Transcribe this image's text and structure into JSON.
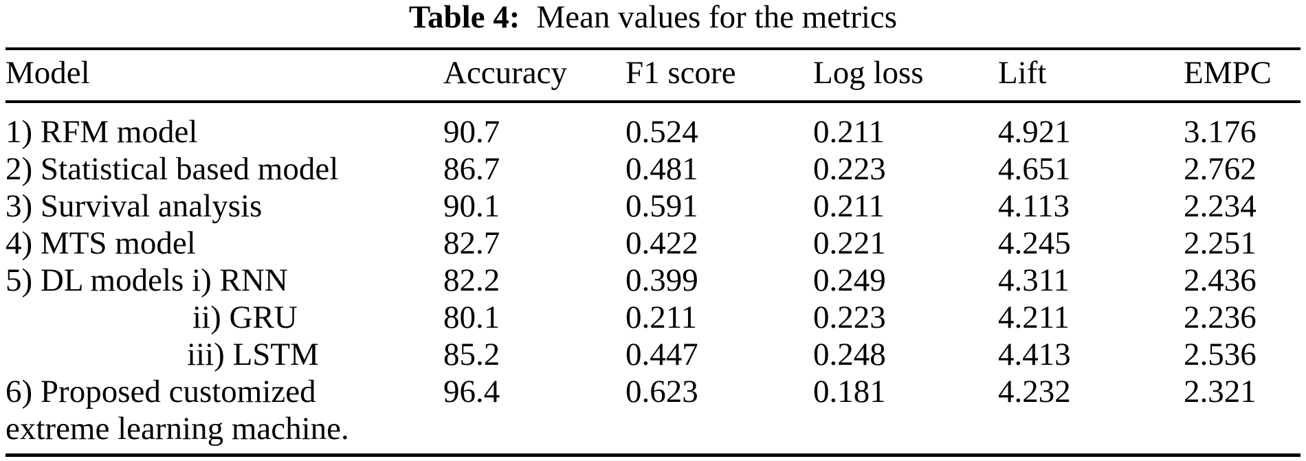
{
  "caption": {
    "label": "Table 4:",
    "title": "Mean values for the metrics"
  },
  "table": {
    "columns": [
      "Model",
      "Accuracy",
      "F1 score",
      "Log loss",
      "Lift",
      "EMPC"
    ],
    "rows": [
      {
        "model": "1) RFM model",
        "accuracy": "90.7",
        "f1_score": "0.524",
        "log_loss": "0.211",
        "lift": "4.921",
        "empc": "3.176"
      },
      {
        "model": "2) Statistical based model",
        "accuracy": "86.7",
        "f1_score": "0.481",
        "log_loss": "0.223",
        "lift": "4.651",
        "empc": "2.762"
      },
      {
        "model": "3) Survival analysis",
        "accuracy": "90.1",
        "f1_score": "0.591",
        "log_loss": "0.211",
        "lift": "4.113",
        "empc": "2.234"
      },
      {
        "model": "4) MTS model",
        "accuracy": "82.7",
        "f1_score": "0.422",
        "log_loss": "0.221",
        "lift": "4.245",
        "empc": "2.251"
      },
      {
        "model": "5) DL models i) RNN",
        "accuracy": "82.2",
        "f1_score": "0.399",
        "log_loss": "0.249",
        "lift": "4.311",
        "empc": "2.436"
      },
      {
        "model": "ii) GRU",
        "accuracy": "80.1",
        "f1_score": "0.211",
        "log_loss": "0.223",
        "lift": "4.211",
        "empc": "2.236"
      },
      {
        "model": "iii) LSTM",
        "accuracy": "85.2",
        "f1_score": "0.447",
        "log_loss": "0.248",
        "lift": "4.413",
        "empc": "2.536"
      },
      {
        "model": "6) Proposed customized",
        "accuracy": "96.4",
        "f1_score": "0.623",
        "log_loss": "0.181",
        "lift": "4.232",
        "empc": "2.321"
      },
      {
        "model": "extreme learning machine.",
        "accuracy": "",
        "f1_score": "",
        "log_loss": "",
        "lift": "",
        "empc": ""
      }
    ]
  },
  "colors": {
    "text": "#000000",
    "background": "#ffffff",
    "rule": "#000000"
  }
}
